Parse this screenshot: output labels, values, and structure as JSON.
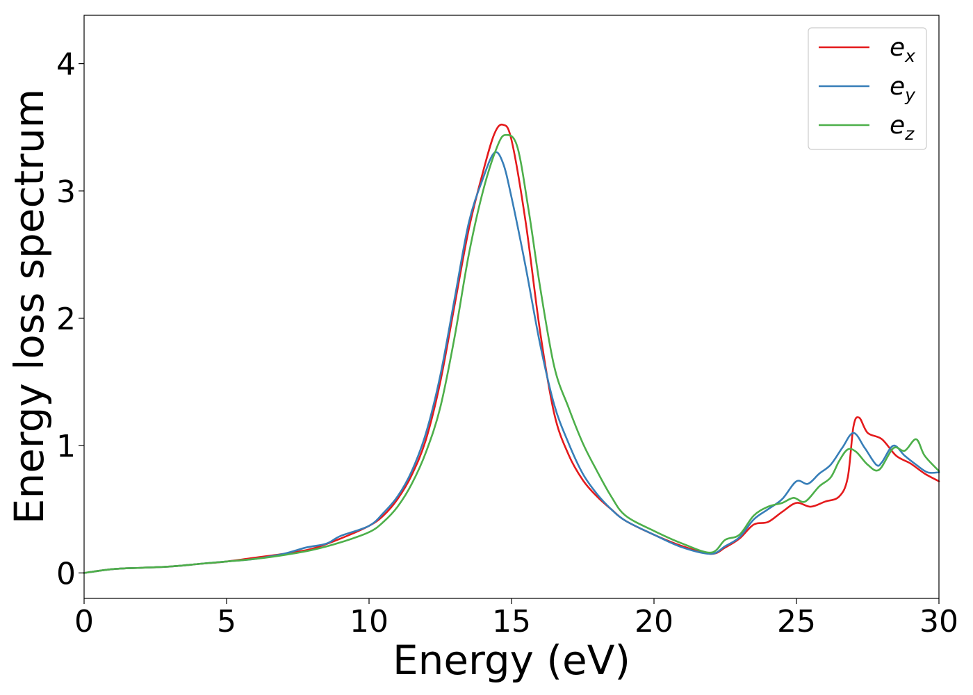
{
  "chart_data": {
    "type": "line",
    "title": "",
    "xlabel": "Energy (eV)",
    "ylabel": "Energy loss spectrum",
    "xlim": [
      0,
      30
    ],
    "ylim": [
      -0.2,
      4.38
    ],
    "x_ticks": [
      0,
      5,
      10,
      15,
      20,
      25,
      30
    ],
    "y_ticks": [
      0,
      1,
      2,
      3,
      4
    ],
    "grid": false,
    "legend_position": "top-right",
    "series": [
      {
        "name_base": "e",
        "name_sub": "x",
        "color": "#e41a1c",
        "points": [
          [
            0,
            0
          ],
          [
            1,
            0.03
          ],
          [
            2,
            0.04
          ],
          [
            3,
            0.05
          ],
          [
            4,
            0.07
          ],
          [
            5,
            0.09
          ],
          [
            6,
            0.12
          ],
          [
            7,
            0.15
          ],
          [
            8,
            0.19
          ],
          [
            9,
            0.27
          ],
          [
            10,
            0.37
          ],
          [
            10.5,
            0.45
          ],
          [
            11,
            0.58
          ],
          [
            11.5,
            0.77
          ],
          [
            12,
            1.05
          ],
          [
            12.5,
            1.5
          ],
          [
            13,
            2.1
          ],
          [
            13.5,
            2.7
          ],
          [
            14,
            3.15
          ],
          [
            14.4,
            3.45
          ],
          [
            14.7,
            3.52
          ],
          [
            15,
            3.4
          ],
          [
            15.5,
            2.75
          ],
          [
            16,
            1.9
          ],
          [
            16.5,
            1.25
          ],
          [
            17,
            0.93
          ],
          [
            17.5,
            0.73
          ],
          [
            18,
            0.6
          ],
          [
            18.5,
            0.5
          ],
          [
            19,
            0.41
          ],
          [
            20,
            0.3
          ],
          [
            21,
            0.21
          ],
          [
            22,
            0.15
          ],
          [
            22.5,
            0.2
          ],
          [
            23,
            0.27
          ],
          [
            23.5,
            0.38
          ],
          [
            24,
            0.4
          ],
          [
            24.5,
            0.48
          ],
          [
            25,
            0.55
          ],
          [
            25.5,
            0.52
          ],
          [
            26,
            0.56
          ],
          [
            26.5,
            0.6
          ],
          [
            26.8,
            0.75
          ],
          [
            27,
            1.15
          ],
          [
            27.2,
            1.22
          ],
          [
            27.5,
            1.1
          ],
          [
            28,
            1.05
          ],
          [
            28.5,
            0.92
          ],
          [
            29,
            0.86
          ],
          [
            29.5,
            0.78
          ],
          [
            30,
            0.72
          ]
        ]
      },
      {
        "name_base": "e",
        "name_sub": "y",
        "color": "#377eb8",
        "points": [
          [
            0,
            0
          ],
          [
            1,
            0.03
          ],
          [
            2,
            0.04
          ],
          [
            3,
            0.05
          ],
          [
            4,
            0.07
          ],
          [
            5,
            0.09
          ],
          [
            6,
            0.11
          ],
          [
            7,
            0.15
          ],
          [
            7.8,
            0.2
          ],
          [
            8.5,
            0.23
          ],
          [
            9,
            0.29
          ],
          [
            10,
            0.37
          ],
          [
            10.5,
            0.47
          ],
          [
            11,
            0.6
          ],
          [
            11.5,
            0.8
          ],
          [
            12,
            1.1
          ],
          [
            12.5,
            1.55
          ],
          [
            13,
            2.15
          ],
          [
            13.5,
            2.75
          ],
          [
            14,
            3.1
          ],
          [
            14.4,
            3.3
          ],
          [
            14.7,
            3.22
          ],
          [
            15,
            2.95
          ],
          [
            15.5,
            2.4
          ],
          [
            16,
            1.8
          ],
          [
            16.5,
            1.32
          ],
          [
            17,
            1.02
          ],
          [
            17.5,
            0.78
          ],
          [
            18,
            0.62
          ],
          [
            18.5,
            0.5
          ],
          [
            19,
            0.41
          ],
          [
            20,
            0.3
          ],
          [
            21,
            0.2
          ],
          [
            22,
            0.15
          ],
          [
            22.5,
            0.21
          ],
          [
            23,
            0.28
          ],
          [
            23.5,
            0.42
          ],
          [
            24,
            0.5
          ],
          [
            24.5,
            0.58
          ],
          [
            25,
            0.72
          ],
          [
            25.4,
            0.7
          ],
          [
            25.8,
            0.78
          ],
          [
            26.2,
            0.85
          ],
          [
            26.6,
            0.98
          ],
          [
            27,
            1.1
          ],
          [
            27.4,
            0.98
          ],
          [
            27.8,
            0.85
          ],
          [
            28,
            0.87
          ],
          [
            28.4,
            1.0
          ],
          [
            28.8,
            0.92
          ],
          [
            29.2,
            0.85
          ],
          [
            29.6,
            0.79
          ],
          [
            30,
            0.79
          ]
        ]
      },
      {
        "name_base": "e",
        "name_sub": "z",
        "color": "#4daf4a",
        "points": [
          [
            0,
            0
          ],
          [
            1,
            0.03
          ],
          [
            2,
            0.04
          ],
          [
            3,
            0.05
          ],
          [
            4,
            0.07
          ],
          [
            5,
            0.09
          ],
          [
            6,
            0.11
          ],
          [
            7,
            0.14
          ],
          [
            8,
            0.18
          ],
          [
            9,
            0.24
          ],
          [
            10,
            0.32
          ],
          [
            10.5,
            0.4
          ],
          [
            11,
            0.52
          ],
          [
            11.5,
            0.7
          ],
          [
            12,
            0.95
          ],
          [
            12.5,
            1.3
          ],
          [
            13,
            1.85
          ],
          [
            13.5,
            2.5
          ],
          [
            14,
            3.0
          ],
          [
            14.5,
            3.35
          ],
          [
            14.8,
            3.44
          ],
          [
            15.2,
            3.35
          ],
          [
            15.6,
            2.85
          ],
          [
            16,
            2.25
          ],
          [
            16.5,
            1.62
          ],
          [
            17,
            1.3
          ],
          [
            17.5,
            1.02
          ],
          [
            18,
            0.8
          ],
          [
            18.5,
            0.6
          ],
          [
            19,
            0.45
          ],
          [
            20,
            0.33
          ],
          [
            21,
            0.23
          ],
          [
            22,
            0.16
          ],
          [
            22.5,
            0.26
          ],
          [
            23,
            0.3
          ],
          [
            23.5,
            0.45
          ],
          [
            24,
            0.52
          ],
          [
            24.5,
            0.55
          ],
          [
            24.9,
            0.59
          ],
          [
            25.3,
            0.56
          ],
          [
            25.8,
            0.68
          ],
          [
            26.2,
            0.75
          ],
          [
            26.5,
            0.88
          ],
          [
            26.8,
            0.97
          ],
          [
            27.1,
            0.95
          ],
          [
            27.5,
            0.85
          ],
          [
            27.9,
            0.81
          ],
          [
            28.4,
            0.98
          ],
          [
            28.8,
            0.96
          ],
          [
            29.2,
            1.05
          ],
          [
            29.5,
            0.92
          ],
          [
            30,
            0.8
          ]
        ]
      }
    ]
  }
}
